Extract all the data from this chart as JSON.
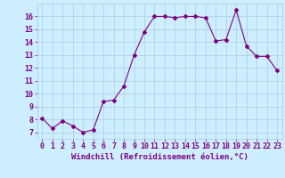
{
  "x": [
    0,
    1,
    2,
    3,
    4,
    5,
    6,
    7,
    8,
    9,
    10,
    11,
    12,
    13,
    14,
    15,
    16,
    17,
    18,
    19,
    20,
    21,
    22,
    23
  ],
  "y": [
    8.1,
    7.3,
    7.9,
    7.5,
    7.0,
    7.2,
    9.4,
    9.5,
    10.6,
    13.0,
    14.8,
    16.0,
    16.0,
    15.9,
    16.0,
    16.0,
    15.9,
    14.1,
    14.2,
    16.5,
    13.7,
    12.9,
    12.9,
    11.8
  ],
  "line_color": "#800080",
  "marker": "D",
  "marker_size": 2.0,
  "bg_color": "#cceeff",
  "grid_color": "#aaccdd",
  "xlabel": "Windchill (Refroidissement éolien,°C)",
  "xlabel_color": "#800080",
  "xlabel_fontsize": 6.5,
  "tick_color": "#800080",
  "tick_fontsize": 6.0,
  "ylim": [
    6.5,
    17.0
  ],
  "xlim": [
    -0.5,
    23.5
  ],
  "yticks": [
    7,
    8,
    9,
    10,
    11,
    12,
    13,
    14,
    15,
    16
  ],
  "xticks": [
    0,
    1,
    2,
    3,
    4,
    5,
    6,
    7,
    8,
    9,
    10,
    11,
    12,
    13,
    14,
    15,
    16,
    17,
    18,
    19,
    20,
    21,
    22,
    23
  ]
}
